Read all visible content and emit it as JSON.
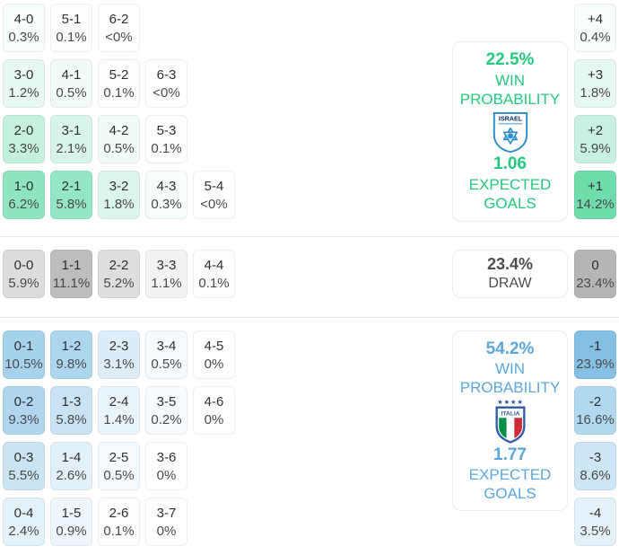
{
  "colors": {
    "home_accent": "#23c97d",
    "away_accent": "#5ba7db",
    "draw_text": "#4d4d4d",
    "divider": "#e8e8e8",
    "home_max_cell": "#6edcab",
    "away_max_cell": "#85c0e4",
    "draw_max_cell": "#b5b5b5"
  },
  "home_section": {
    "win_probability_value": "22.5%",
    "win_probability_label": "WIN PROBABILITY",
    "expected_goals_value": "1.06",
    "expected_goals_label": "EXPECTED GOALS",
    "badge_label": "ISRAEL",
    "score_rows": [
      [
        {
          "score": "4-0",
          "pct": "0.3%",
          "bg": "#f6fdfa"
        },
        {
          "score": "5-1",
          "pct": "0.1%",
          "bg": "#fbfefd"
        },
        {
          "score": "6-2",
          "pct": "<0%",
          "bg": "#ffffff"
        }
      ],
      [
        {
          "score": "3-0",
          "pct": "1.2%",
          "bg": "#e6f8f0"
        },
        {
          "score": "4-1",
          "pct": "0.5%",
          "bg": "#f2fbf7"
        },
        {
          "score": "5-2",
          "pct": "0.1%",
          "bg": "#fbfefd"
        },
        {
          "score": "6-3",
          "pct": "<0%",
          "bg": "#ffffff"
        }
      ],
      [
        {
          "score": "2-0",
          "pct": "3.3%",
          "bg": "#c5f0de"
        },
        {
          "score": "3-1",
          "pct": "2.1%",
          "bg": "#d8f4e8"
        },
        {
          "score": "4-2",
          "pct": "0.5%",
          "bg": "#f2fbf7"
        },
        {
          "score": "5-3",
          "pct": "0.1%",
          "bg": "#fbfefd"
        }
      ],
      [
        {
          "score": "1-0",
          "pct": "6.2%",
          "bg": "#8ee5c0"
        },
        {
          "score": "2-1",
          "pct": "5.8%",
          "bg": "#94e7c5"
        },
        {
          "score": "3-2",
          "pct": "1.8%",
          "bg": "#dcf5ea"
        },
        {
          "score": "4-3",
          "pct": "0.3%",
          "bg": "#f6fdfa"
        },
        {
          "score": "5-4",
          "pct": "<0%",
          "bg": "#ffffff"
        }
      ]
    ],
    "goal_diff_cells": [
      {
        "diff": "+4",
        "pct": "0.4%",
        "bg": "#f7fdfb"
      },
      {
        "diff": "+3",
        "pct": "1.8%",
        "bg": "#e6f8f0"
      },
      {
        "diff": "+2",
        "pct": "5.9%",
        "bg": "#c9f1e1"
      },
      {
        "diff": "+1",
        "pct": "14.2%",
        "bg": "#6edcab"
      }
    ]
  },
  "draw_section": {
    "probability_value": "23.4%",
    "label": "DRAW",
    "score_rows": [
      [
        {
          "score": "0-0",
          "pct": "5.9%",
          "bg": "#dcdcdc"
        },
        {
          "score": "1-1",
          "pct": "11.1%",
          "bg": "#bdbdbd"
        },
        {
          "score": "2-2",
          "pct": "5.2%",
          "bg": "#dedede"
        },
        {
          "score": "3-3",
          "pct": "1.1%",
          "bg": "#f3f3f3"
        },
        {
          "score": "4-4",
          "pct": "0.1%",
          "bg": "#fdfdfd"
        }
      ]
    ],
    "goal_diff_cells": [
      {
        "diff": "0",
        "pct": "23.4%",
        "bg": "#b5b5b5"
      }
    ]
  },
  "away_section": {
    "win_probability_value": "54.2%",
    "win_probability_label": "WIN PROBABILITY",
    "expected_goals_value": "1.77",
    "expected_goals_label": "EXPECTED GOALS",
    "badge_label": "ITALIA",
    "score_rows": [
      [
        {
          "score": "0-1",
          "pct": "10.5%",
          "bg": "#a6d2ec"
        },
        {
          "score": "1-2",
          "pct": "9.8%",
          "bg": "#acd5ee"
        },
        {
          "score": "2-3",
          "pct": "3.1%",
          "bg": "#ddedf8"
        },
        {
          "score": "3-4",
          "pct": "0.5%",
          "bg": "#f4fafd"
        },
        {
          "score": "4-5",
          "pct": "0%",
          "bg": "#ffffff"
        }
      ],
      [
        {
          "score": "0-2",
          "pct": "9.3%",
          "bg": "#afd6ee"
        },
        {
          "score": "1-3",
          "pct": "5.8%",
          "bg": "#c9e3f4"
        },
        {
          "score": "2-4",
          "pct": "1.4%",
          "bg": "#eaf4fb"
        },
        {
          "score": "3-5",
          "pct": "0.2%",
          "bg": "#f8fbfe"
        },
        {
          "score": "4-6",
          "pct": "0%",
          "bg": "#ffffff"
        }
      ],
      [
        {
          "score": "0-3",
          "pct": "5.5%",
          "bg": "#cbe4f4"
        },
        {
          "score": "1-4",
          "pct": "2.6%",
          "bg": "#e1f0f9"
        },
        {
          "score": "2-5",
          "pct": "0.5%",
          "bg": "#f4fafd"
        },
        {
          "score": "3-6",
          "pct": "0%",
          "bg": "#ffffff"
        }
      ],
      [
        {
          "score": "0-4",
          "pct": "2.4%",
          "bg": "#e3f1f9"
        },
        {
          "score": "1-5",
          "pct": "0.9%",
          "bg": "#f0f7fc"
        },
        {
          "score": "2-6",
          "pct": "0.1%",
          "bg": "#fbfdfe"
        },
        {
          "score": "3-7",
          "pct": "0%",
          "bg": "#ffffff"
        }
      ]
    ],
    "goal_diff_cells": [
      {
        "diff": "-1",
        "pct": "23.9%",
        "bg": "#85c0e4"
      },
      {
        "diff": "-2",
        "pct": "16.6%",
        "bg": "#b0d8ef"
      },
      {
        "diff": "-3",
        "pct": "8.6%",
        "bg": "#cde5f5"
      },
      {
        "diff": "-4",
        "pct": "3.5%",
        "bg": "#e4f1f9"
      }
    ]
  }
}
